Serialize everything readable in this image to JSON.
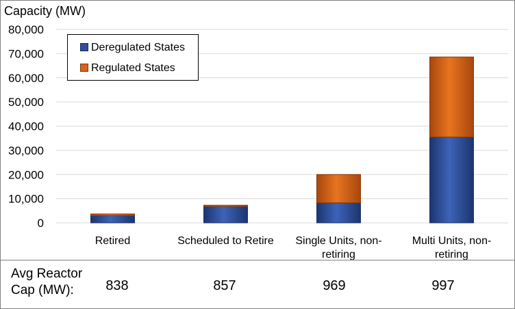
{
  "chart_data": {
    "type": "bar",
    "stacked": true,
    "ylabel": "Capacity (MW)",
    "ylim": [
      0,
      80000
    ],
    "y_ticks": [
      "80,000",
      "70,000",
      "60,000",
      "50,000",
      "40,000",
      "30,000",
      "20,000",
      "10,000",
      "0"
    ],
    "y_tick_values": [
      80000,
      70000,
      60000,
      50000,
      40000,
      30000,
      20000,
      10000,
      0
    ],
    "grid": true,
    "legend_position": "top-left",
    "categories": [
      "Retired",
      "Scheduled to Retire",
      "Single Units, non-retiring",
      "Multi Units, non-retiring"
    ],
    "category_lines": [
      [
        "Retired"
      ],
      [
        "Scheduled to Retire"
      ],
      [
        "Single Units, non-",
        "retiring"
      ],
      [
        "Multi Units, non-",
        "retiring"
      ]
    ],
    "series": [
      {
        "name": "Deregulated States",
        "values": [
          3000,
          6800,
          8300,
          35500
        ],
        "color": "#2f4e9c"
      },
      {
        "name": "Regulated States",
        "values": [
          700,
          500,
          11700,
          33100
        ],
        "color": "#d7641a"
      }
    ]
  },
  "table": {
    "label": "Avg Reactor Cap (MW):",
    "label_lines": [
      "Avg Reactor",
      "Cap (MW):"
    ],
    "values": [
      "838",
      "857",
      "969",
      "997"
    ]
  }
}
